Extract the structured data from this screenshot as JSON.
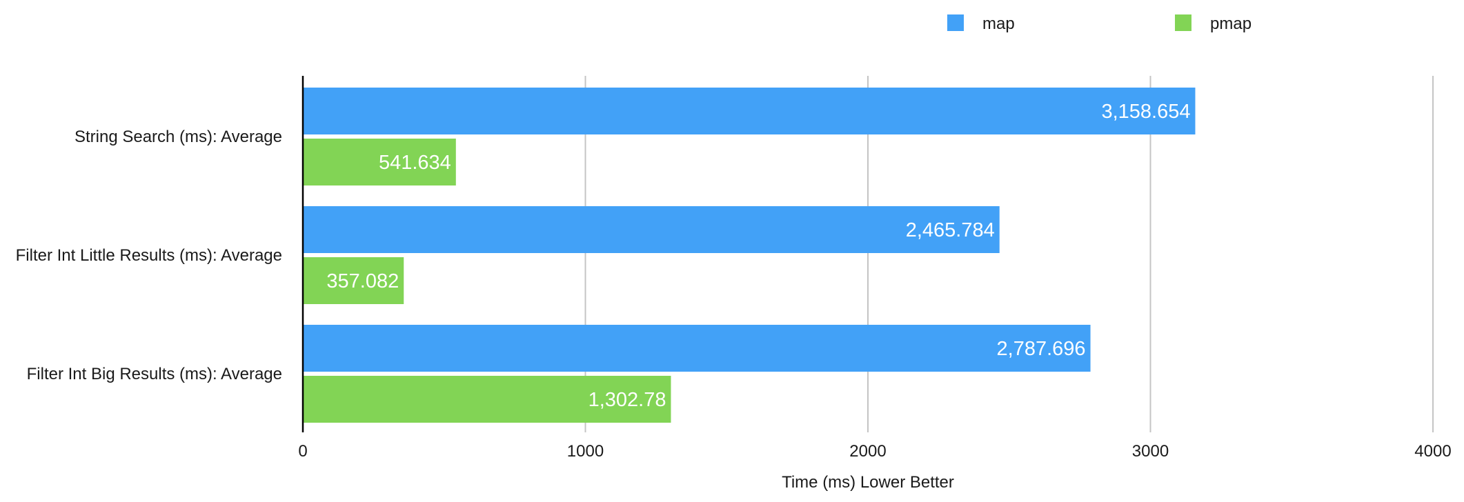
{
  "chart_data": {
    "type": "bar",
    "orientation": "horizontal",
    "categories": [
      "String Search (ms): Average",
      "Filter Int Little Results (ms): Average",
      "Filter Int Big Results (ms): Average"
    ],
    "series": [
      {
        "name": "map",
        "color": "#42a1f7",
        "values": [
          3158.654,
          2465.784,
          2787.696
        ],
        "labels": [
          "3,158.654",
          "2,465.784",
          "2,787.696"
        ]
      },
      {
        "name": "pmap",
        "color": "#82d455",
        "values": [
          541.634,
          357.082,
          1302.78
        ],
        "labels": [
          "541.634",
          "357.082",
          "1,302.78"
        ]
      }
    ],
    "xlabel": "Time (ms) Lower Better",
    "ylabel": "",
    "xlim": [
      0,
      4000
    ],
    "ticks": [
      0,
      1000,
      2000,
      3000,
      4000
    ],
    "tick_labels": [
      "0",
      "1000",
      "2000",
      "3000",
      "4000"
    ],
    "grid": true,
    "legend_position": "top-right"
  }
}
